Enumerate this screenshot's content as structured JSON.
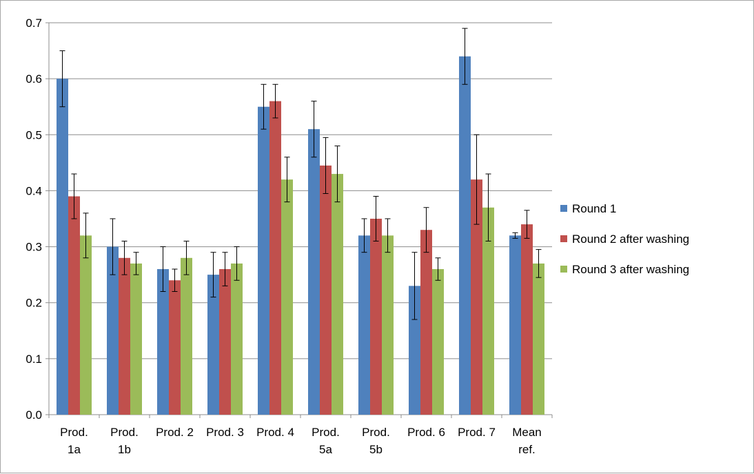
{
  "chart_data": {
    "type": "bar",
    "title": "",
    "xlabel": "",
    "ylabel": "",
    "ylim": [
      0,
      0.7
    ],
    "y_ticks": [
      "0.0",
      "0.1",
      "0.2",
      "0.3",
      "0.4",
      "0.5",
      "0.6",
      "0.7"
    ],
    "grid": "horizontal",
    "legend_position": "right",
    "categories": [
      [
        "Prod.",
        "1a"
      ],
      [
        "Prod.",
        "1b"
      ],
      [
        "Prod. 2"
      ],
      [
        "Prod. 3"
      ],
      [
        "Prod. 4"
      ],
      [
        "Prod.",
        "5a"
      ],
      [
        "Prod.",
        "5b"
      ],
      [
        "Prod. 6"
      ],
      [
        "Prod. 7"
      ],
      [
        "Mean",
        "ref."
      ]
    ],
    "series": [
      {
        "name": "Round 1",
        "color": "#4f81bd",
        "values": [
          0.6,
          0.3,
          0.26,
          0.25,
          0.55,
          0.51,
          0.32,
          0.23,
          0.64,
          0.32
        ],
        "errors": [
          0.05,
          0.05,
          0.04,
          0.04,
          0.04,
          0.05,
          0.03,
          0.06,
          0.05,
          0.005
        ]
      },
      {
        "name": "Round 2 after washing",
        "color": "#c0504d",
        "values": [
          0.39,
          0.28,
          0.24,
          0.26,
          0.56,
          0.445,
          0.35,
          0.33,
          0.42,
          0.34
        ],
        "errors": [
          0.04,
          0.03,
          0.02,
          0.03,
          0.03,
          0.05,
          0.04,
          0.04,
          0.08,
          0.025
        ]
      },
      {
        "name": "Round 3 after washing",
        "color": "#9bbb59",
        "values": [
          0.32,
          0.27,
          0.28,
          0.27,
          0.42,
          0.43,
          0.32,
          0.26,
          0.37,
          0.27
        ],
        "errors": [
          0.04,
          0.02,
          0.03,
          0.03,
          0.04,
          0.05,
          0.03,
          0.02,
          0.06,
          0.025
        ]
      }
    ]
  }
}
